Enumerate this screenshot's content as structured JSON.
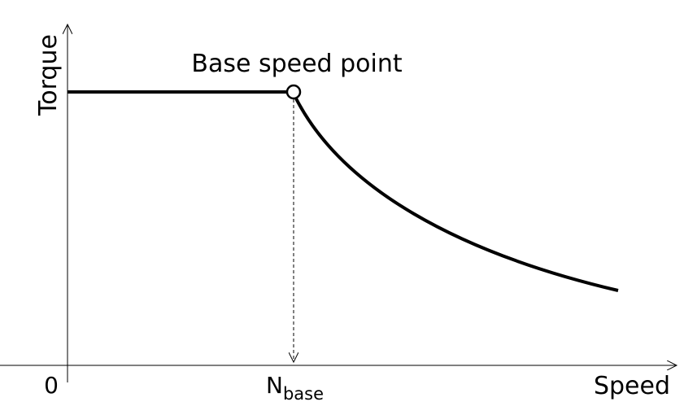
{
  "annotation": "Base speed point",
  "y_axis_label": "Torque",
  "x_axis_label": "Speed",
  "origin_label": "0",
  "base_speed_label": {
    "main": "N",
    "subscript": "base"
  }
}
